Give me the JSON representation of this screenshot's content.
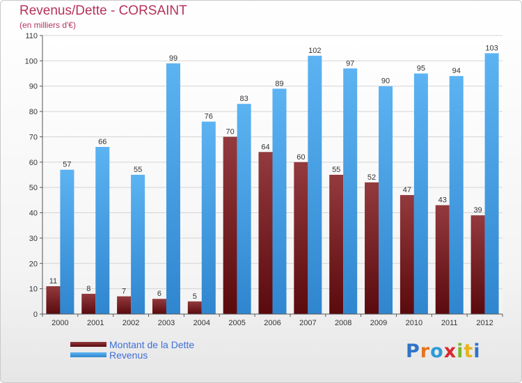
{
  "chart_data": {
    "type": "bar",
    "title": "Revenus/Dette - CORSAINT",
    "subtitle": "(en milliers d'€)",
    "categories": [
      "2000",
      "2001",
      "2002",
      "2003",
      "2004",
      "2005",
      "2006",
      "2007",
      "2008",
      "2009",
      "2010",
      "2011",
      "2012"
    ],
    "series": [
      {
        "name": "Montant de la Dette",
        "color": "#7a1418",
        "values": [
          11,
          8,
          7,
          6,
          5,
          70,
          64,
          60,
          55,
          52,
          47,
          43,
          39
        ]
      },
      {
        "name": "Revenus",
        "color": "#4aa3e8",
        "values": [
          57,
          66,
          55,
          99,
          76,
          83,
          89,
          102,
          97,
          90,
          95,
          94,
          103
        ]
      }
    ],
    "ylim": [
      0,
      110
    ],
    "yticks": [
      0,
      10,
      20,
      30,
      40,
      50,
      60,
      70,
      80,
      90,
      100,
      110
    ],
    "grid": true,
    "legend_position": "bottom-left"
  },
  "logo": {
    "letters": [
      {
        "char": "P",
        "color": "#2f74c9"
      },
      {
        "char": "r",
        "color": "#e8731c"
      },
      {
        "char": "o",
        "color": "#2f9ad8"
      },
      {
        "char": "x",
        "color": "#d9272e"
      },
      {
        "char": "i",
        "color": "#7cb927"
      },
      {
        "char": "t",
        "color": "#e8b31c"
      },
      {
        "char": "i",
        "color": "#2f74c9"
      }
    ]
  }
}
